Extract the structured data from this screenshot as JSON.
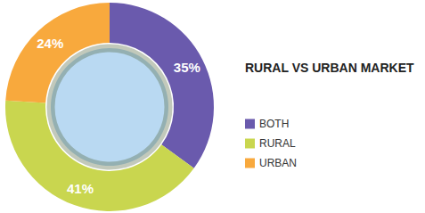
{
  "chart_data": {
    "type": "pie",
    "title": "RURAL VS URBAN MARKET",
    "categories": [
      "BOTH",
      "RURAL",
      "URBAN"
    ],
    "values": [
      35,
      41,
      24
    ],
    "value_labels": [
      "35%",
      "41%",
      "24%"
    ],
    "colors": [
      "#6a5aad",
      "#c9d64f",
      "#f8a93d"
    ],
    "data_labels": true,
    "legend": "right"
  }
}
